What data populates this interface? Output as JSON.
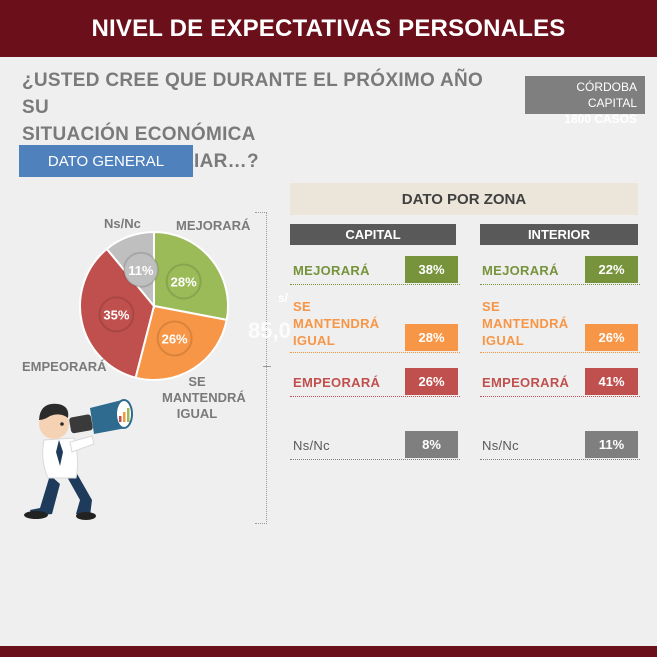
{
  "header": {
    "title": "NIVEL DE EXPECTATIVAS PERSONALES"
  },
  "question": {
    "line1": "¿USTED CREE QUE DURANTE EL PRÓXIMO AÑO SU",
    "line2": "SITUACIÓN ECONÓMICA PERSONAL/FAMILIAR…?"
  },
  "sample": {
    "place": "CÓRDOBA CAPITAL",
    "cases": "1800  CASOS"
  },
  "general": {
    "tab_label": "DATO GENERAL"
  },
  "ghost": {
    "small": "s/",
    "big": "85,0"
  },
  "chart_data": {
    "type": "pie",
    "slices": [
      {
        "name": "MEJORARÁ",
        "value": 28,
        "label": "28%",
        "color": "#9bbb59"
      },
      {
        "name": "SE MANTENDRÁ IGUAL",
        "value": 26,
        "label": "26%",
        "color": "#f79646"
      },
      {
        "name": "EMPEORARÁ",
        "value": 35,
        "label": "35%",
        "color": "#c0504d"
      },
      {
        "name": "Ns/Nc",
        "value": 11,
        "label": "11%",
        "color": "#bfbfbf"
      }
    ],
    "category_labels": {
      "mejorara": "MEJORARÁ",
      "se_mantendra_1": "SE",
      "se_mantendra_2": "MANTENDRÁ",
      "se_mantendra_3": "IGUAL",
      "empeorara": "EMPEORARÁ",
      "nsnc": "Ns/Nc"
    }
  },
  "zone": {
    "title": "DATO POR ZONA",
    "capital": {
      "header": "CAPITAL",
      "rows": [
        {
          "label": "MEJORARÁ",
          "value": "38%",
          "color": "#77933c"
        },
        {
          "label_1": "SE",
          "label_2": "MANTENDRÁ",
          "label_3": "IGUAL",
          "value": "28%",
          "color": "#f79646"
        },
        {
          "label": "EMPEORARÁ",
          "value": "26%",
          "color": "#c0504d"
        },
        {
          "label": "Ns/Nc",
          "value": "8%",
          "color": "#7f7f7f"
        }
      ]
    },
    "interior": {
      "header": "INTERIOR",
      "rows": [
        {
          "label": "MEJORARÁ",
          "value": "22%",
          "color": "#77933c"
        },
        {
          "label_1": "SE",
          "label_2": "MANTENDRÁ",
          "label_3": "IGUAL",
          "value": "26%",
          "color": "#f79646"
        },
        {
          "label": "EMPEORARÁ",
          "value": "41%",
          "color": "#c0504d"
        },
        {
          "label": "Ns/Nc",
          "value": "11%",
          "color": "#7f7f7f"
        }
      ]
    }
  },
  "colors": {
    "brand": "#6b0f1a",
    "accent_blue": "#4f81bd"
  },
  "icons": {
    "illustration": "businessman-binoculars-icon"
  }
}
